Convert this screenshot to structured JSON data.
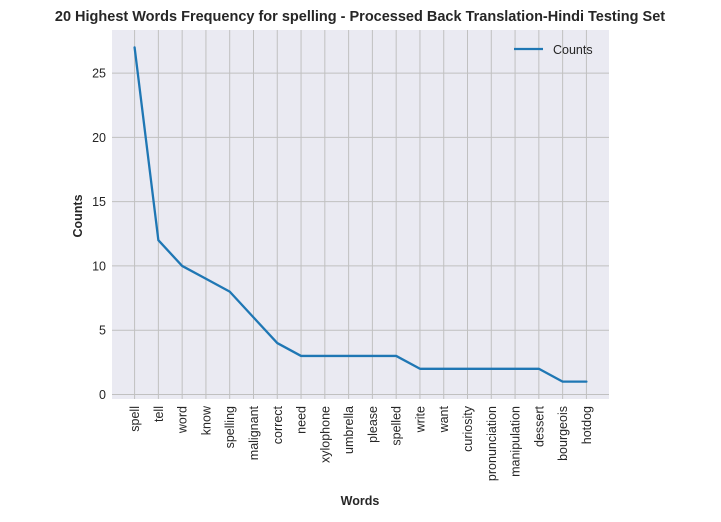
{
  "chart_data": {
    "type": "line",
    "title": "20 Highest Words Frequency for spelling - Processed Back Translation-Hindi Testing Set",
    "xlabel": "Words",
    "ylabel": "Counts",
    "categories": [
      "spell",
      "tell",
      "word",
      "know",
      "spelling",
      "malignant",
      "correct",
      "need",
      "xylophone",
      "umbrella",
      "please",
      "spelled",
      "write",
      "want",
      "curiosity",
      "pronunciation",
      "manipulation",
      "dessert",
      "bourgeois",
      "hotdog"
    ],
    "series": [
      {
        "name": "Counts",
        "values": [
          27,
          12,
          10,
          9,
          8,
          6,
          4,
          3,
          3,
          3,
          3,
          3,
          2,
          2,
          2,
          2,
          2,
          2,
          1,
          1
        ],
        "color": "#1f77b4"
      }
    ],
    "yticks": [
      0,
      5,
      10,
      15,
      20,
      25
    ],
    "ylim": [
      -0.35,
      28.35
    ],
    "grid": true,
    "legend_position": "top-right",
    "background_color": "#eaeaf2",
    "grid_color": "#c0c0c0"
  }
}
